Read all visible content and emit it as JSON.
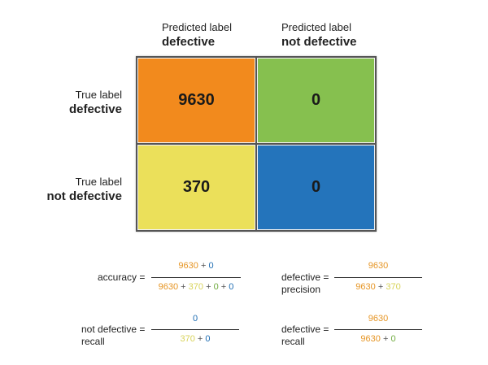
{
  "columns": [
    {
      "small": "Predicted label",
      "big": "defective"
    },
    {
      "small": "Predicted label",
      "big": "not defective"
    }
  ],
  "rows": [
    {
      "small": "True label",
      "big": "defective"
    },
    {
      "small": "True label",
      "big": "not defective"
    }
  ],
  "matrix": {
    "tp": {
      "value": "9630",
      "color": "#f28a1d"
    },
    "fn": {
      "value": "0",
      "color": "#86c04f"
    },
    "fp": {
      "value": "370",
      "color": "#ebe05a"
    },
    "tn": {
      "value": "0",
      "color": "#2474bb"
    }
  },
  "term_colors": {
    "tp": "#e69524",
    "fn": "#6faa3e",
    "fp": "#d8d35a",
    "tn": "#1e6db3"
  },
  "formulas": {
    "accuracy": {
      "label": "accuracy =",
      "num": [
        {
          "t": "9630",
          "k": "tp"
        },
        {
          "t": " + ",
          "k": "op"
        },
        {
          "t": "0",
          "k": "tn"
        }
      ],
      "den": [
        {
          "t": "9630",
          "k": "tp"
        },
        {
          "t": " + ",
          "k": "op"
        },
        {
          "t": "370",
          "k": "fp"
        },
        {
          "t": " + ",
          "k": "op"
        },
        {
          "t": "0",
          "k": "fn"
        },
        {
          "t": " + ",
          "k": "op"
        },
        {
          "t": "0",
          "k": "tn"
        }
      ]
    },
    "precision": {
      "label_line1": "defective =",
      "label_line2": "precision",
      "num": [
        {
          "t": "9630",
          "k": "tp"
        }
      ],
      "den": [
        {
          "t": "9630",
          "k": "tp"
        },
        {
          "t": " + ",
          "k": "op"
        },
        {
          "t": "370",
          "k": "fp"
        }
      ]
    },
    "nd_recall": {
      "label_line1": "not defective =",
      "label_line2": "recall",
      "num": [
        {
          "t": "0",
          "k": "tn"
        }
      ],
      "den": [
        {
          "t": "370",
          "k": "fp"
        },
        {
          "t": " + ",
          "k": "op"
        },
        {
          "t": "0",
          "k": "tn"
        }
      ]
    },
    "d_recall": {
      "label_line1": "defective =",
      "label_line2": "recall",
      "num": [
        {
          "t": "9630",
          "k": "tp"
        }
      ],
      "den": [
        {
          "t": "9630",
          "k": "tp"
        },
        {
          "t": " + ",
          "k": "op"
        },
        {
          "t": "0",
          "k": "fn"
        }
      ]
    }
  }
}
